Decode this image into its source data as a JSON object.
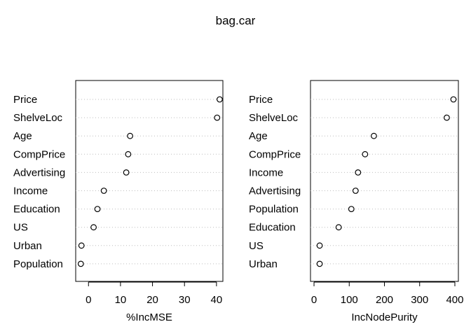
{
  "title": "bag.car",
  "chart_data": [
    {
      "type": "dot",
      "title": "",
      "xlabel": "%IncMSE",
      "ylabel": "",
      "categories": [
        "Price",
        "ShelveLoc",
        "Age",
        "CompPrice",
        "Advertising",
        "Income",
        "Education",
        "US",
        "Urban",
        "Population"
      ],
      "values": [
        41,
        40.2,
        13,
        12.4,
        11.8,
        4.8,
        2.8,
        1.6,
        -2.2,
        -2.4
      ],
      "xlim": [
        -4,
        42
      ],
      "xticks": [
        0,
        10,
        20,
        30,
        40
      ],
      "grid": "dotted horizontal guide lines"
    },
    {
      "type": "dot",
      "title": "",
      "xlabel": "IncNodePurity",
      "ylabel": "",
      "categories": [
        "Price",
        "ShelveLoc",
        "Age",
        "CompPrice",
        "Income",
        "Advertising",
        "Population",
        "Education",
        "US",
        "Urban"
      ],
      "values": [
        396,
        377,
        170,
        145,
        125,
        118,
        106,
        70,
        16,
        16
      ],
      "xlim": [
        -10,
        410
      ],
      "xticks": [
        0,
        100,
        200,
        300,
        400
      ],
      "grid": "dotted horizontal guide lines"
    }
  ]
}
